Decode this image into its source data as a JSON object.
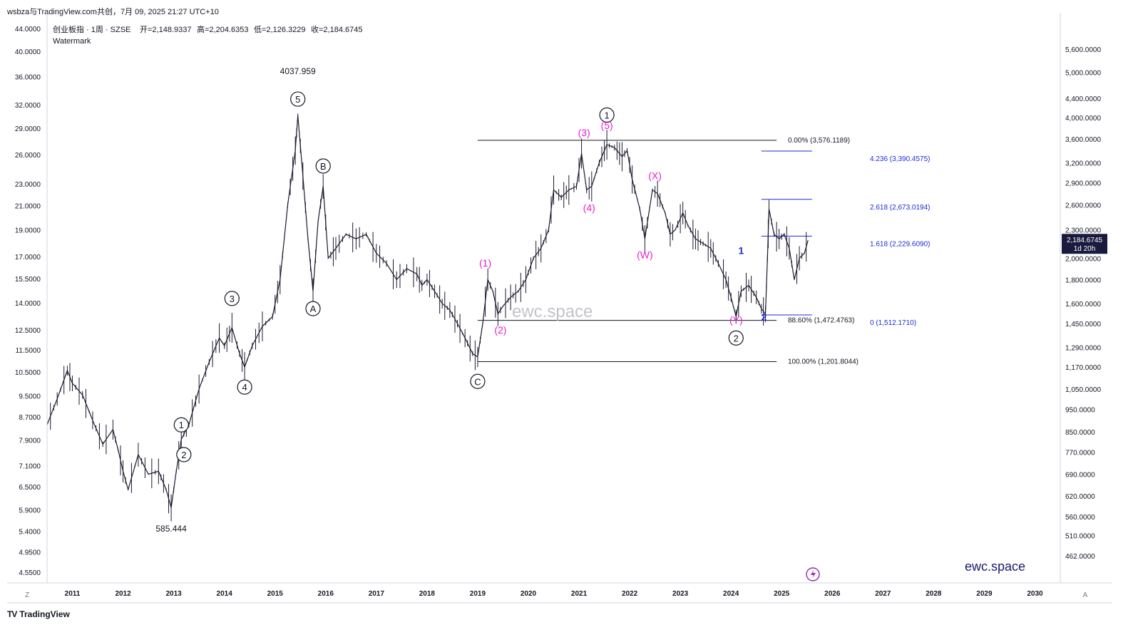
{
  "header": {
    "text": "wsbza与TradingView.com共创，7月 09, 2025 21:27 UTC+10"
  },
  "footer": {
    "logo_label": "TradingView",
    "logo_icon": "tradingview-logo-icon"
  },
  "chart_data": {
    "type": "candlestick-line",
    "symbol_line": "创业板指 · 1周 · SZSE",
    "ohlc": {
      "open_label": "开=2,148.9337",
      "high_label": "高=2,204.6353",
      "low_label": "低=2,126.3229",
      "close_label": "收=2,184.6745"
    },
    "watermark_label": "Watermark",
    "brand": "ewc.space",
    "brand_watermark": "ewc.space",
    "last_price_label": "2,184.6745",
    "countdown_label": "1d 20h",
    "axis_left_label": "Z",
    "axis_right_label": "A",
    "x_ticks": [
      "2011",
      "2012",
      "2013",
      "2014",
      "2015",
      "2016",
      "2017",
      "2018",
      "2019",
      "2020",
      "2021",
      "2022",
      "2023",
      "2024",
      "2025",
      "2026",
      "2027",
      "2028",
      "2029",
      "2030"
    ],
    "x_range": [
      2010.5,
      2030.5
    ],
    "left_ticks": [
      "44.0000",
      "40.0000",
      "36.0000",
      "32.0000",
      "29.0000",
      "26.0000",
      "23.0000",
      "21.0000",
      "19.0000",
      "17.0000",
      "15.5000",
      "14.0000",
      "12.5000",
      "11.5000",
      "10.5000",
      "9.5000",
      "8.7000",
      "7.9000",
      "7.1000",
      "6.5000",
      "5.9000",
      "5.4000",
      "4.9500",
      "4.5500"
    ],
    "left_tick_values": [
      44,
      40,
      36,
      32,
      29,
      26,
      23,
      21,
      19,
      17,
      15.5,
      14,
      12.5,
      11.5,
      10.5,
      9.5,
      8.7,
      7.9,
      7.1,
      6.5,
      5.9,
      5.4,
      4.95,
      4.55
    ],
    "right_ticks": [
      "5,600.0000",
      "5,000.0000",
      "4,400.0000",
      "4,000.0000",
      "3,600.0000",
      "3,200.0000",
      "2,900.0000",
      "2,600.0000",
      "2,300.0000",
      "2,000.0000",
      "1,800.0000",
      "1,600.0000",
      "1,450.0000",
      "1,290.0000",
      "1,170.0000",
      "1,050.0000",
      "950.0000",
      "850.0000",
      "770.0000",
      "690.0000",
      "620.0000",
      "560.0000",
      "510.0000",
      "462.0000"
    ],
    "right_tick_values": [
      5600,
      5000,
      4400,
      4000,
      3600,
      3200,
      2900,
      2600,
      2300,
      2000,
      1800,
      1600,
      1450,
      1290,
      1170,
      1050,
      950,
      850,
      770,
      690,
      620,
      560,
      510,
      462
    ],
    "y_scale": "log",
    "price_path": [
      [
        2010.5,
        880
      ],
      [
        2010.7,
        1000
      ],
      [
        2010.9,
        1150
      ],
      [
        2011.0,
        1080
      ],
      [
        2011.2,
        1020
      ],
      [
        2011.4,
        900
      ],
      [
        2011.6,
        800
      ],
      [
        2011.8,
        860
      ],
      [
        2011.9,
        780
      ],
      [
        2012.0,
        700
      ],
      [
        2012.1,
        640
      ],
      [
        2012.3,
        760
      ],
      [
        2012.5,
        690
      ],
      [
        2012.7,
        700
      ],
      [
        2012.85,
        640
      ],
      [
        2012.95,
        585
      ],
      [
        2013.05,
        700
      ],
      [
        2013.15,
        820
      ],
      [
        2013.3,
        880
      ],
      [
        2013.5,
        1050
      ],
      [
        2013.7,
        1200
      ],
      [
        2013.9,
        1350
      ],
      [
        2014.0,
        1300
      ],
      [
        2014.15,
        1420
      ],
      [
        2014.3,
        1250
      ],
      [
        2014.4,
        1170
      ],
      [
        2014.55,
        1300
      ],
      [
        2014.75,
        1430
      ],
      [
        2014.95,
        1500
      ],
      [
        2015.1,
        1800
      ],
      [
        2015.25,
        2600
      ],
      [
        2015.4,
        3400
      ],
      [
        2015.45,
        4038
      ],
      [
        2015.55,
        3000
      ],
      [
        2015.65,
        2200
      ],
      [
        2015.75,
        1700
      ],
      [
        2015.85,
        2400
      ],
      [
        2015.95,
        2850
      ],
      [
        2016.05,
        2000
      ],
      [
        2016.2,
        2100
      ],
      [
        2016.4,
        2250
      ],
      [
        2016.6,
        2200
      ],
      [
        2016.8,
        2250
      ],
      [
        2017.0,
        2050
      ],
      [
        2017.2,
        1950
      ],
      [
        2017.4,
        1800
      ],
      [
        2017.6,
        1900
      ],
      [
        2017.8,
        1850
      ],
      [
        2017.9,
        1750
      ],
      [
        2018.0,
        1800
      ],
      [
        2018.15,
        1700
      ],
      [
        2018.3,
        1600
      ],
      [
        2018.45,
        1550
      ],
      [
        2018.6,
        1450
      ],
      [
        2018.75,
        1350
      ],
      [
        2018.9,
        1250
      ],
      [
        2019.0,
        1230
      ],
      [
        2019.1,
        1450
      ],
      [
        2019.2,
        1800
      ],
      [
        2019.3,
        1700
      ],
      [
        2019.4,
        1520
      ],
      [
        2019.5,
        1580
      ],
      [
        2019.65,
        1650
      ],
      [
        2019.8,
        1700
      ],
      [
        2019.95,
        1800
      ],
      [
        2020.1,
        2000
      ],
      [
        2020.25,
        2100
      ],
      [
        2020.4,
        2300
      ],
      [
        2020.5,
        2800
      ],
      [
        2020.65,
        2700
      ],
      [
        2020.8,
        2800
      ],
      [
        2020.95,
        2850
      ],
      [
        2021.05,
        3350
      ],
      [
        2021.15,
        2800
      ],
      [
        2021.25,
        2850
      ],
      [
        2021.4,
        3200
      ],
      [
        2021.55,
        3500
      ],
      [
        2021.7,
        3450
      ],
      [
        2021.85,
        3300
      ],
      [
        2021.95,
        3400
      ],
      [
        2022.05,
        2950
      ],
      [
        2022.2,
        2550
      ],
      [
        2022.3,
        2200
      ],
      [
        2022.45,
        2800
      ],
      [
        2022.55,
        2750
      ],
      [
        2022.7,
        2500
      ],
      [
        2022.8,
        2250
      ],
      [
        2022.9,
        2300
      ],
      [
        2023.05,
        2500
      ],
      [
        2023.15,
        2350
      ],
      [
        2023.3,
        2200
      ],
      [
        2023.45,
        2150
      ],
      [
        2023.6,
        2100
      ],
      [
        2023.75,
        1950
      ],
      [
        2023.9,
        1800
      ],
      [
        2024.0,
        1650
      ],
      [
        2024.1,
        1500
      ],
      [
        2024.2,
        1700
      ],
      [
        2024.35,
        1750
      ],
      [
        2024.5,
        1650
      ],
      [
        2024.6,
        1560
      ],
      [
        2024.68,
        1520
      ],
      [
        2024.72,
        2000
      ],
      [
        2024.75,
        2550
      ],
      [
        2024.85,
        2250
      ],
      [
        2024.95,
        2200
      ],
      [
        2025.05,
        2250
      ],
      [
        2025.15,
        2100
      ],
      [
        2025.25,
        1800
      ],
      [
        2025.35,
        2000
      ],
      [
        2025.45,
        2050
      ],
      [
        2025.52,
        2185
      ]
    ],
    "fib_retracement": [
      {
        "label": "0.00% (3,576.1189)",
        "value": 3576.1189,
        "x_start": 2019.0,
        "x_end": 2024.9
      },
      {
        "label": "88.60% (1,472.4763)",
        "value": 1472.4763,
        "x_start": 2019.0,
        "x_end": 2024.9
      },
      {
        "label": "100.00% (1,201.8044)",
        "value": 1201.8044,
        "x_start": 2019.0,
        "x_end": 2024.9
      }
    ],
    "fib_extension": [
      {
        "label": "4.236 (3,390.4575)",
        "value": 3390.4575,
        "x_start": 2024.6,
        "x_end": 2025.6
      },
      {
        "label": "2.618 (2,673.0194)",
        "value": 2673.0194,
        "x_start": 2024.6,
        "x_end": 2025.6
      },
      {
        "label": "1.618 (2,229.6090)",
        "value": 2229.609,
        "x_start": 2024.6,
        "x_end": 2025.6
      },
      {
        "label": "0 (1,512.1710)",
        "value": 1512.171,
        "x_start": 2024.6,
        "x_end": 2025.6
      }
    ],
    "annotations": [
      {
        "text": "4037.959",
        "kind": "price",
        "x": 2015.45,
        "y": 4950
      },
      {
        "text": "585.444",
        "kind": "price",
        "x": 2012.95,
        "y": 520
      },
      {
        "text": "5",
        "kind": "circle",
        "x": 2015.45,
        "y": 4380
      },
      {
        "text": "B",
        "kind": "circle",
        "x": 2015.95,
        "y": 3150
      },
      {
        "text": "A",
        "kind": "circle",
        "x": 2015.75,
        "y": 1560
      },
      {
        "text": "3",
        "kind": "circle",
        "x": 2014.15,
        "y": 1640
      },
      {
        "text": "4",
        "kind": "circle",
        "x": 2014.4,
        "y": 1060
      },
      {
        "text": "1",
        "kind": "circle",
        "x": 2013.15,
        "y": 880
      },
      {
        "text": "2",
        "kind": "circle",
        "x": 2013.2,
        "y": 760
      },
      {
        "text": "C",
        "kind": "circle",
        "x": 2019.0,
        "y": 1090
      },
      {
        "text": "1",
        "kind": "circle",
        "x": 2021.55,
        "y": 4050
      },
      {
        "text": "2",
        "kind": "circle",
        "x": 2024.1,
        "y": 1350
      },
      {
        "text": "(1)",
        "kind": "magenta",
        "x": 2019.15,
        "y": 1920
      },
      {
        "text": "(2)",
        "kind": "magenta",
        "x": 2019.45,
        "y": 1380
      },
      {
        "text": "(3)",
        "kind": "magenta",
        "x": 2021.1,
        "y": 3650
      },
      {
        "text": "(4)",
        "kind": "magenta",
        "x": 2021.2,
        "y": 2520
      },
      {
        "text": "(5)",
        "kind": "magenta",
        "x": 2021.55,
        "y": 3780
      },
      {
        "text": "(W)",
        "kind": "magenta",
        "x": 2022.3,
        "y": 2000
      },
      {
        "text": "(X)",
        "kind": "magenta",
        "x": 2022.5,
        "y": 2950
      },
      {
        "text": "(Y)",
        "kind": "magenta",
        "x": 2024.1,
        "y": 1450
      },
      {
        "text": "1",
        "kind": "blue",
        "x": 2024.2,
        "y": 2040
      },
      {
        "text": "2",
        "kind": "blue",
        "x": 2024.65,
        "y": 1470
      }
    ]
  }
}
